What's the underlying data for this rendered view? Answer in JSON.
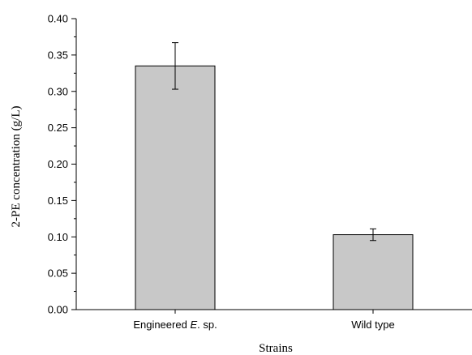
{
  "chart_data": {
    "type": "bar",
    "categories": [
      "Engineered E. sp.",
      "Wild type"
    ],
    "category_label_parts": [
      [
        {
          "text": "Engineered ",
          "italic": false
        },
        {
          "text": "E",
          "italic": true
        },
        {
          "text": ". sp.",
          "italic": false
        }
      ],
      [
        {
          "text": "Wild type",
          "italic": false
        }
      ]
    ],
    "values": [
      0.335,
      0.103
    ],
    "error_bars": [
      0.032,
      0.008
    ],
    "xlabel": "Strains",
    "ylabel": "2-PE concentration (g/L)",
    "ylim": [
      0,
      0.4
    ],
    "yticks": [
      "0.00",
      "0.05",
      "0.10",
      "0.15",
      "0.20",
      "0.25",
      "0.30",
      "0.35",
      "0.40"
    ],
    "bar_color": "#c8c8c8",
    "grid": false
  }
}
